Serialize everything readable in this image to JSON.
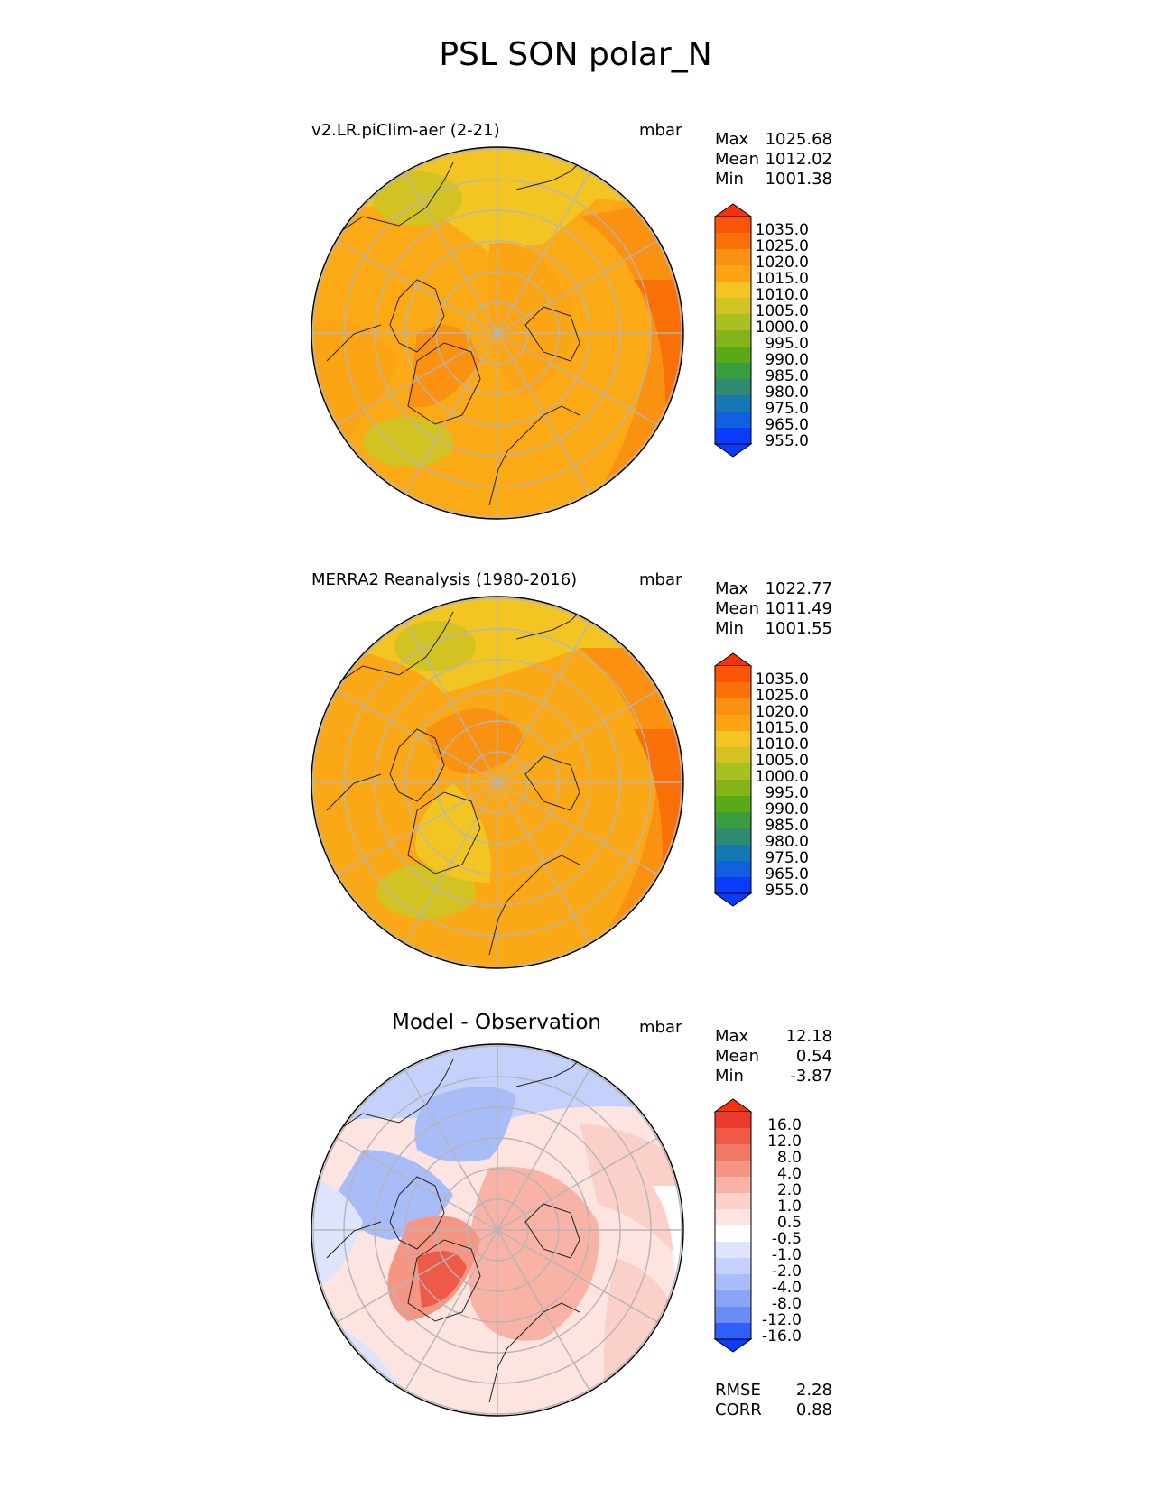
{
  "title": "PSL SON polar_N",
  "colors": {
    "abs_levels": [
      "#0a3cff",
      "#1060e0",
      "#1578b0",
      "#2f8a70",
      "#3a9e40",
      "#5aaa18",
      "#84b418",
      "#a8c022",
      "#d2c222",
      "#f3c523",
      "#fba414",
      "#fb9110",
      "#f97008",
      "#f85508",
      "#f83208"
    ],
    "diff_levels": [
      "#0a3cff",
      "#2f5ef8",
      "#4a72f5",
      "#6a8cf5",
      "#8aa4f7",
      "#a8bcf8",
      "#c4d1fb",
      "#dde4fc",
      "#ffffff",
      "#fde4e0",
      "#fbd0c8",
      "#f8b2a6",
      "#f59684",
      "#f27966",
      "#ef5a48",
      "#ea3a2e",
      "#f83208"
    ],
    "land_outline": "#222222",
    "grid": "#b5b5b5"
  },
  "panels": [
    {
      "left_title": "v2.LR.piClim-aer (2-21)",
      "center_title": "",
      "units": "mbar",
      "stats": [
        {
          "label": "Max",
          "value": "1025.68"
        },
        {
          "label": "Mean",
          "value": "1012.02"
        },
        {
          "label": "Min",
          "value": "1001.38"
        }
      ],
      "colorbar_ticks": [
        "1035.0",
        "1025.0",
        "1020.0",
        "1015.0",
        "1010.0",
        "1005.0",
        "1000.0",
        "995.0",
        "990.0",
        "985.0",
        "980.0",
        "975.0",
        "965.0",
        "955.0"
      ]
    },
    {
      "left_title": "MERRA2 Reanalysis (1980-2016)",
      "center_title": "",
      "units": "mbar",
      "stats": [
        {
          "label": "Max",
          "value": "1022.77"
        },
        {
          "label": "Mean",
          "value": "1011.49"
        },
        {
          "label": "Min",
          "value": "1001.55"
        }
      ],
      "colorbar_ticks": [
        "1035.0",
        "1025.0",
        "1020.0",
        "1015.0",
        "1010.0",
        "1005.0",
        "1000.0",
        "995.0",
        "990.0",
        "985.0",
        "980.0",
        "975.0",
        "965.0",
        "955.0"
      ]
    },
    {
      "left_title": "",
      "center_title": "Model - Observation",
      "units": "mbar",
      "stats": [
        {
          "label": "Max",
          "value": "12.18"
        },
        {
          "label": "Mean",
          "value": "0.54"
        },
        {
          "label": "Min",
          "value": "-3.87"
        }
      ],
      "colorbar_ticks": [
        "16.0",
        "12.0",
        "8.0",
        "4.0",
        "2.0",
        "1.0",
        "0.5",
        "-0.5",
        "-1.0",
        "-2.0",
        "-4.0",
        "-8.0",
        "-12.0",
        "-16.0"
      ],
      "metrics": [
        {
          "label": "RMSE",
          "value": "2.28"
        },
        {
          "label": "CORR",
          "value": "0.88"
        }
      ]
    }
  ],
  "chart_data": [
    {
      "type": "heatmap",
      "title": "v2.LR.piClim-aer (2-21)",
      "projection": "north polar stereographic",
      "units": "mbar",
      "levels": [
        955,
        965,
        975,
        980,
        985,
        990,
        995,
        1000,
        1005,
        1010,
        1015,
        1020,
        1025,
        1035
      ],
      "max": 1025.68,
      "mean": 1012.02,
      "min": 1001.38
    },
    {
      "type": "heatmap",
      "title": "MERRA2 Reanalysis (1980-2016)",
      "projection": "north polar stereographic",
      "units": "mbar",
      "levels": [
        955,
        965,
        975,
        980,
        985,
        990,
        995,
        1000,
        1005,
        1010,
        1015,
        1020,
        1025,
        1035
      ],
      "max": 1022.77,
      "mean": 1011.49,
      "min": 1001.55
    },
    {
      "type": "heatmap",
      "title": "Model - Observation",
      "projection": "north polar stereographic",
      "units": "mbar",
      "levels": [
        -16,
        -12,
        -8,
        -4,
        -2,
        -1,
        -0.5,
        0.5,
        1,
        2,
        4,
        8,
        12,
        16
      ],
      "max": 12.18,
      "mean": 0.54,
      "min": -3.87,
      "rmse": 2.28,
      "corr": 0.88
    }
  ]
}
